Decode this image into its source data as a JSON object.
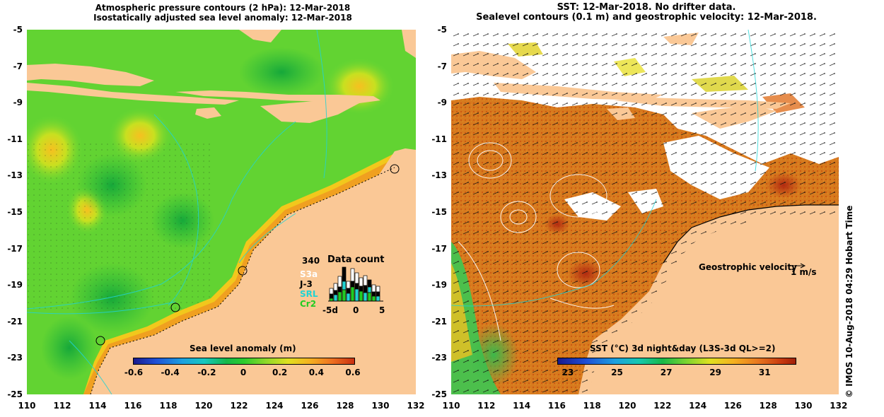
{
  "left_panel": {
    "title_line1": "Atmospheric pressure contours (2 hPa): 12-Mar-2018",
    "title_line2": "Isostatically adjusted sea level anomaly: 12-Mar-2018",
    "x_ticks": [
      "110",
      "112",
      "114",
      "116",
      "118",
      "120",
      "122",
      "124",
      "126",
      "128",
      "130",
      "132"
    ],
    "y_ticks": [
      "-5",
      "-7",
      "-9",
      "-11",
      "-13",
      "-15",
      "-17",
      "-19",
      "-21",
      "-23",
      "-25"
    ],
    "colorbar": {
      "label": "Sea level anomaly (m)",
      "ticks": [
        "-0.6",
        "-0.4",
        "-0.2",
        "0",
        "0.2",
        "0.4",
        "0.6"
      ]
    },
    "data_count": {
      "title": "Data count",
      "max_label": "340",
      "satellites": [
        {
          "name": "S3a",
          "color": "#ffffff"
        },
        {
          "name": "J-3",
          "color": "#000000"
        },
        {
          "name": "SRL",
          "color": "#22d3d3"
        },
        {
          "name": "Cr2",
          "color": "#22cc22"
        }
      ],
      "x_ticks": [
        "-5d",
        "0",
        "5"
      ]
    }
  },
  "right_panel": {
    "title_line1": "SST: 12-Mar-2018. No drifter data.",
    "title_line2": "Sealevel contours (0.1 m) and geostrophic velocity: 12-Mar-2018.",
    "x_ticks": [
      "110",
      "112",
      "114",
      "116",
      "118",
      "120",
      "122",
      "124",
      "126",
      "128",
      "130",
      "132"
    ],
    "y_ticks": [
      "-5",
      "-7",
      "-9",
      "-11",
      "-13",
      "-15",
      "-17",
      "-19",
      "-21",
      "-23",
      "-25"
    ],
    "velocity_label": "Geostrophic velocity",
    "velocity_scale": "1 m/s",
    "colorbar": {
      "label": "SST (°C) 3d night&day (L3S-3d QL>=2)",
      "ticks": [
        "23",
        "25",
        "27",
        "29",
        "31"
      ]
    }
  },
  "credit": "© IMOS 10-Aug-2018 04:29 Hobart Time",
  "colors": {
    "land": "#fac896",
    "sla_green": "#33cc33",
    "sst_orange": "#d9781e",
    "cloud_white": "#ffffff"
  }
}
